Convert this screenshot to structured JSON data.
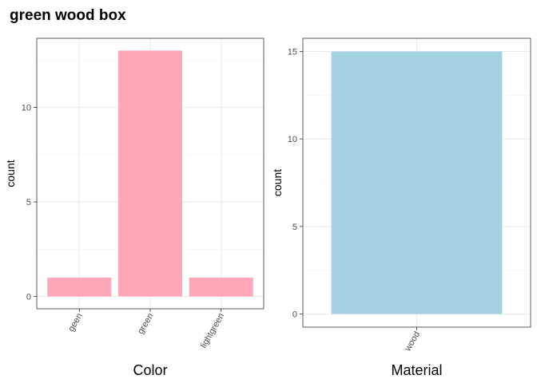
{
  "title": "green wood box",
  "chart_data": [
    {
      "type": "bar",
      "categories": [
        "geen",
        "green",
        "lightgreen"
      ],
      "values": [
        1,
        13,
        1
      ],
      "xlabel": "Color",
      "ylabel": "count",
      "ylim": [
        -0.65,
        13.65
      ],
      "yticks": [
        0,
        5,
        10
      ],
      "bar_color": "#FFA6B8",
      "grid": true
    },
    {
      "type": "bar",
      "categories": [
        "wood"
      ],
      "values": [
        15
      ],
      "xlabel": "Material",
      "ylabel": "count",
      "ylim": [
        -0.75,
        15.75
      ],
      "yticks": [
        0,
        5,
        10,
        15
      ],
      "bar_color": "#A3D1E1",
      "grid": true
    }
  ]
}
